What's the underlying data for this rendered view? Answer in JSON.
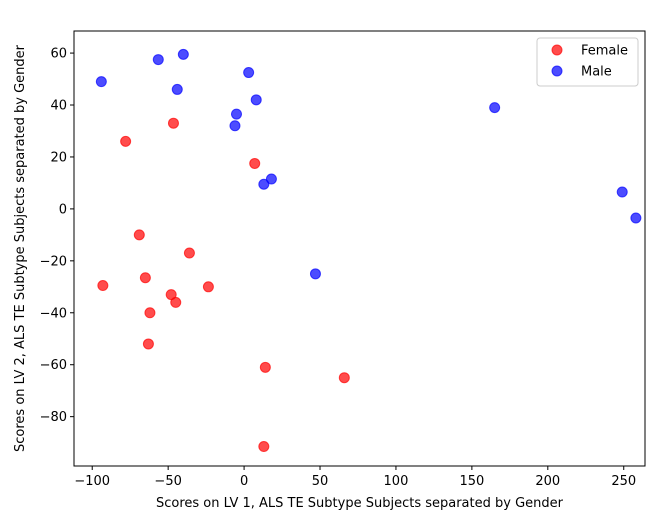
{
  "chart_data": {
    "type": "scatter",
    "title": "",
    "xlabel": "Scores on LV 1, ALS TE Subtype Subjects separated by Gender",
    "ylabel": "Scores on LV 2, ALS TE Subtype Subjects separated by Gender",
    "xlim": [
      -112,
      264
    ],
    "ylim": [
      -99,
      68.5
    ],
    "xticks": [
      -100,
      -50,
      0,
      50,
      100,
      150,
      200,
      250
    ],
    "yticks": [
      -80,
      -60,
      -40,
      -20,
      0,
      20,
      40,
      60
    ],
    "grid": false,
    "legend_position": "top-right",
    "series": [
      {
        "name": "Female",
        "color": "#ff0000",
        "points": [
          [
            -78,
            26
          ],
          [
            -46.5,
            33
          ],
          [
            7,
            17.5
          ],
          [
            -69,
            -10
          ],
          [
            -36,
            -17
          ],
          [
            -65,
            -26.5
          ],
          [
            -93,
            -29.5
          ],
          [
            -23.5,
            -30
          ],
          [
            -48,
            -33
          ],
          [
            -45,
            -36
          ],
          [
            -62,
            -40
          ],
          [
            -63,
            -52
          ],
          [
            14,
            -61
          ],
          [
            66,
            -65
          ],
          [
            13,
            -91.5
          ]
        ]
      },
      {
        "name": "Male",
        "color": "#0000ff",
        "points": [
          [
            -94,
            49
          ],
          [
            -56.5,
            57.5
          ],
          [
            -40,
            59.5
          ],
          [
            -44,
            46
          ],
          [
            3,
            52.5
          ],
          [
            8,
            42
          ],
          [
            -5,
            36.5
          ],
          [
            -6,
            32
          ],
          [
            165,
            39
          ],
          [
            18,
            11.5
          ],
          [
            13,
            9.5
          ],
          [
            249,
            6.5
          ],
          [
            258,
            -3.5
          ],
          [
            47,
            -25
          ]
        ]
      }
    ]
  }
}
